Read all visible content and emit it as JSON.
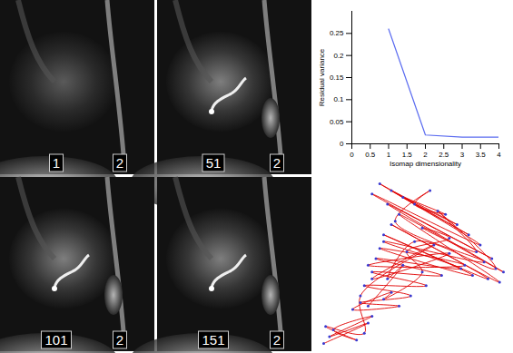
{
  "images": [
    {
      "labels": [
        "1",
        "2"
      ]
    },
    {
      "labels": [
        "51",
        "2"
      ]
    },
    {
      "labels": [
        "101",
        "2"
      ]
    },
    {
      "labels": [
        "151",
        "2"
      ]
    }
  ],
  "chart_data": [
    {
      "type": "line",
      "x": [
        1,
        2,
        3,
        4
      ],
      "values": [
        0.26,
        0.02,
        0.015,
        0.015
      ],
      "color": "#5b6cf0",
      "x_label": "Isomap dimensionality",
      "y_label": "Residual variance",
      "xlim": [
        0,
        4
      ],
      "xticks": [
        0,
        0.5,
        1,
        1.5,
        2,
        2.5,
        3,
        3.5,
        4
      ],
      "ylim": [
        0,
        0.3
      ],
      "yticks": [
        0,
        0.05,
        0.1,
        0.15,
        0.2,
        0.25
      ]
    },
    {
      "type": "line",
      "marker": "dot",
      "color": "#e00000",
      "tick_labels": false,
      "x": [
        5,
        28,
        8,
        30,
        10,
        22,
        6,
        26,
        24,
        62,
        30,
        70,
        28,
        78,
        34,
        82,
        36,
        90,
        40,
        96,
        44,
        98,
        38,
        92,
        30,
        86,
        34,
        80,
        40,
        74,
        46,
        68,
        52,
        60,
        42,
        88,
        36,
        76,
        32,
        66,
        30,
        58,
        26,
        50,
        24,
        44,
        20,
        40,
        36,
        56,
        48,
        70,
        56,
        84,
        64,
        94,
        52,
        38,
        46,
        28
      ],
      "values": [
        2,
        14,
        6,
        18,
        10,
        4,
        12,
        8,
        30,
        60,
        40,
        55,
        48,
        48,
        58,
        42,
        66,
        40,
        72,
        38,
        78,
        44,
        84,
        52,
        90,
        60,
        96,
        66,
        92,
        72,
        88,
        78,
        84,
        92,
        74,
        50,
        62,
        46,
        52,
        42,
        44,
        36,
        36,
        30,
        26,
        24,
        22,
        32,
        28,
        44,
        56,
        64,
        70,
        56,
        80,
        46,
        62,
        40,
        48,
        24
      ]
    }
  ]
}
